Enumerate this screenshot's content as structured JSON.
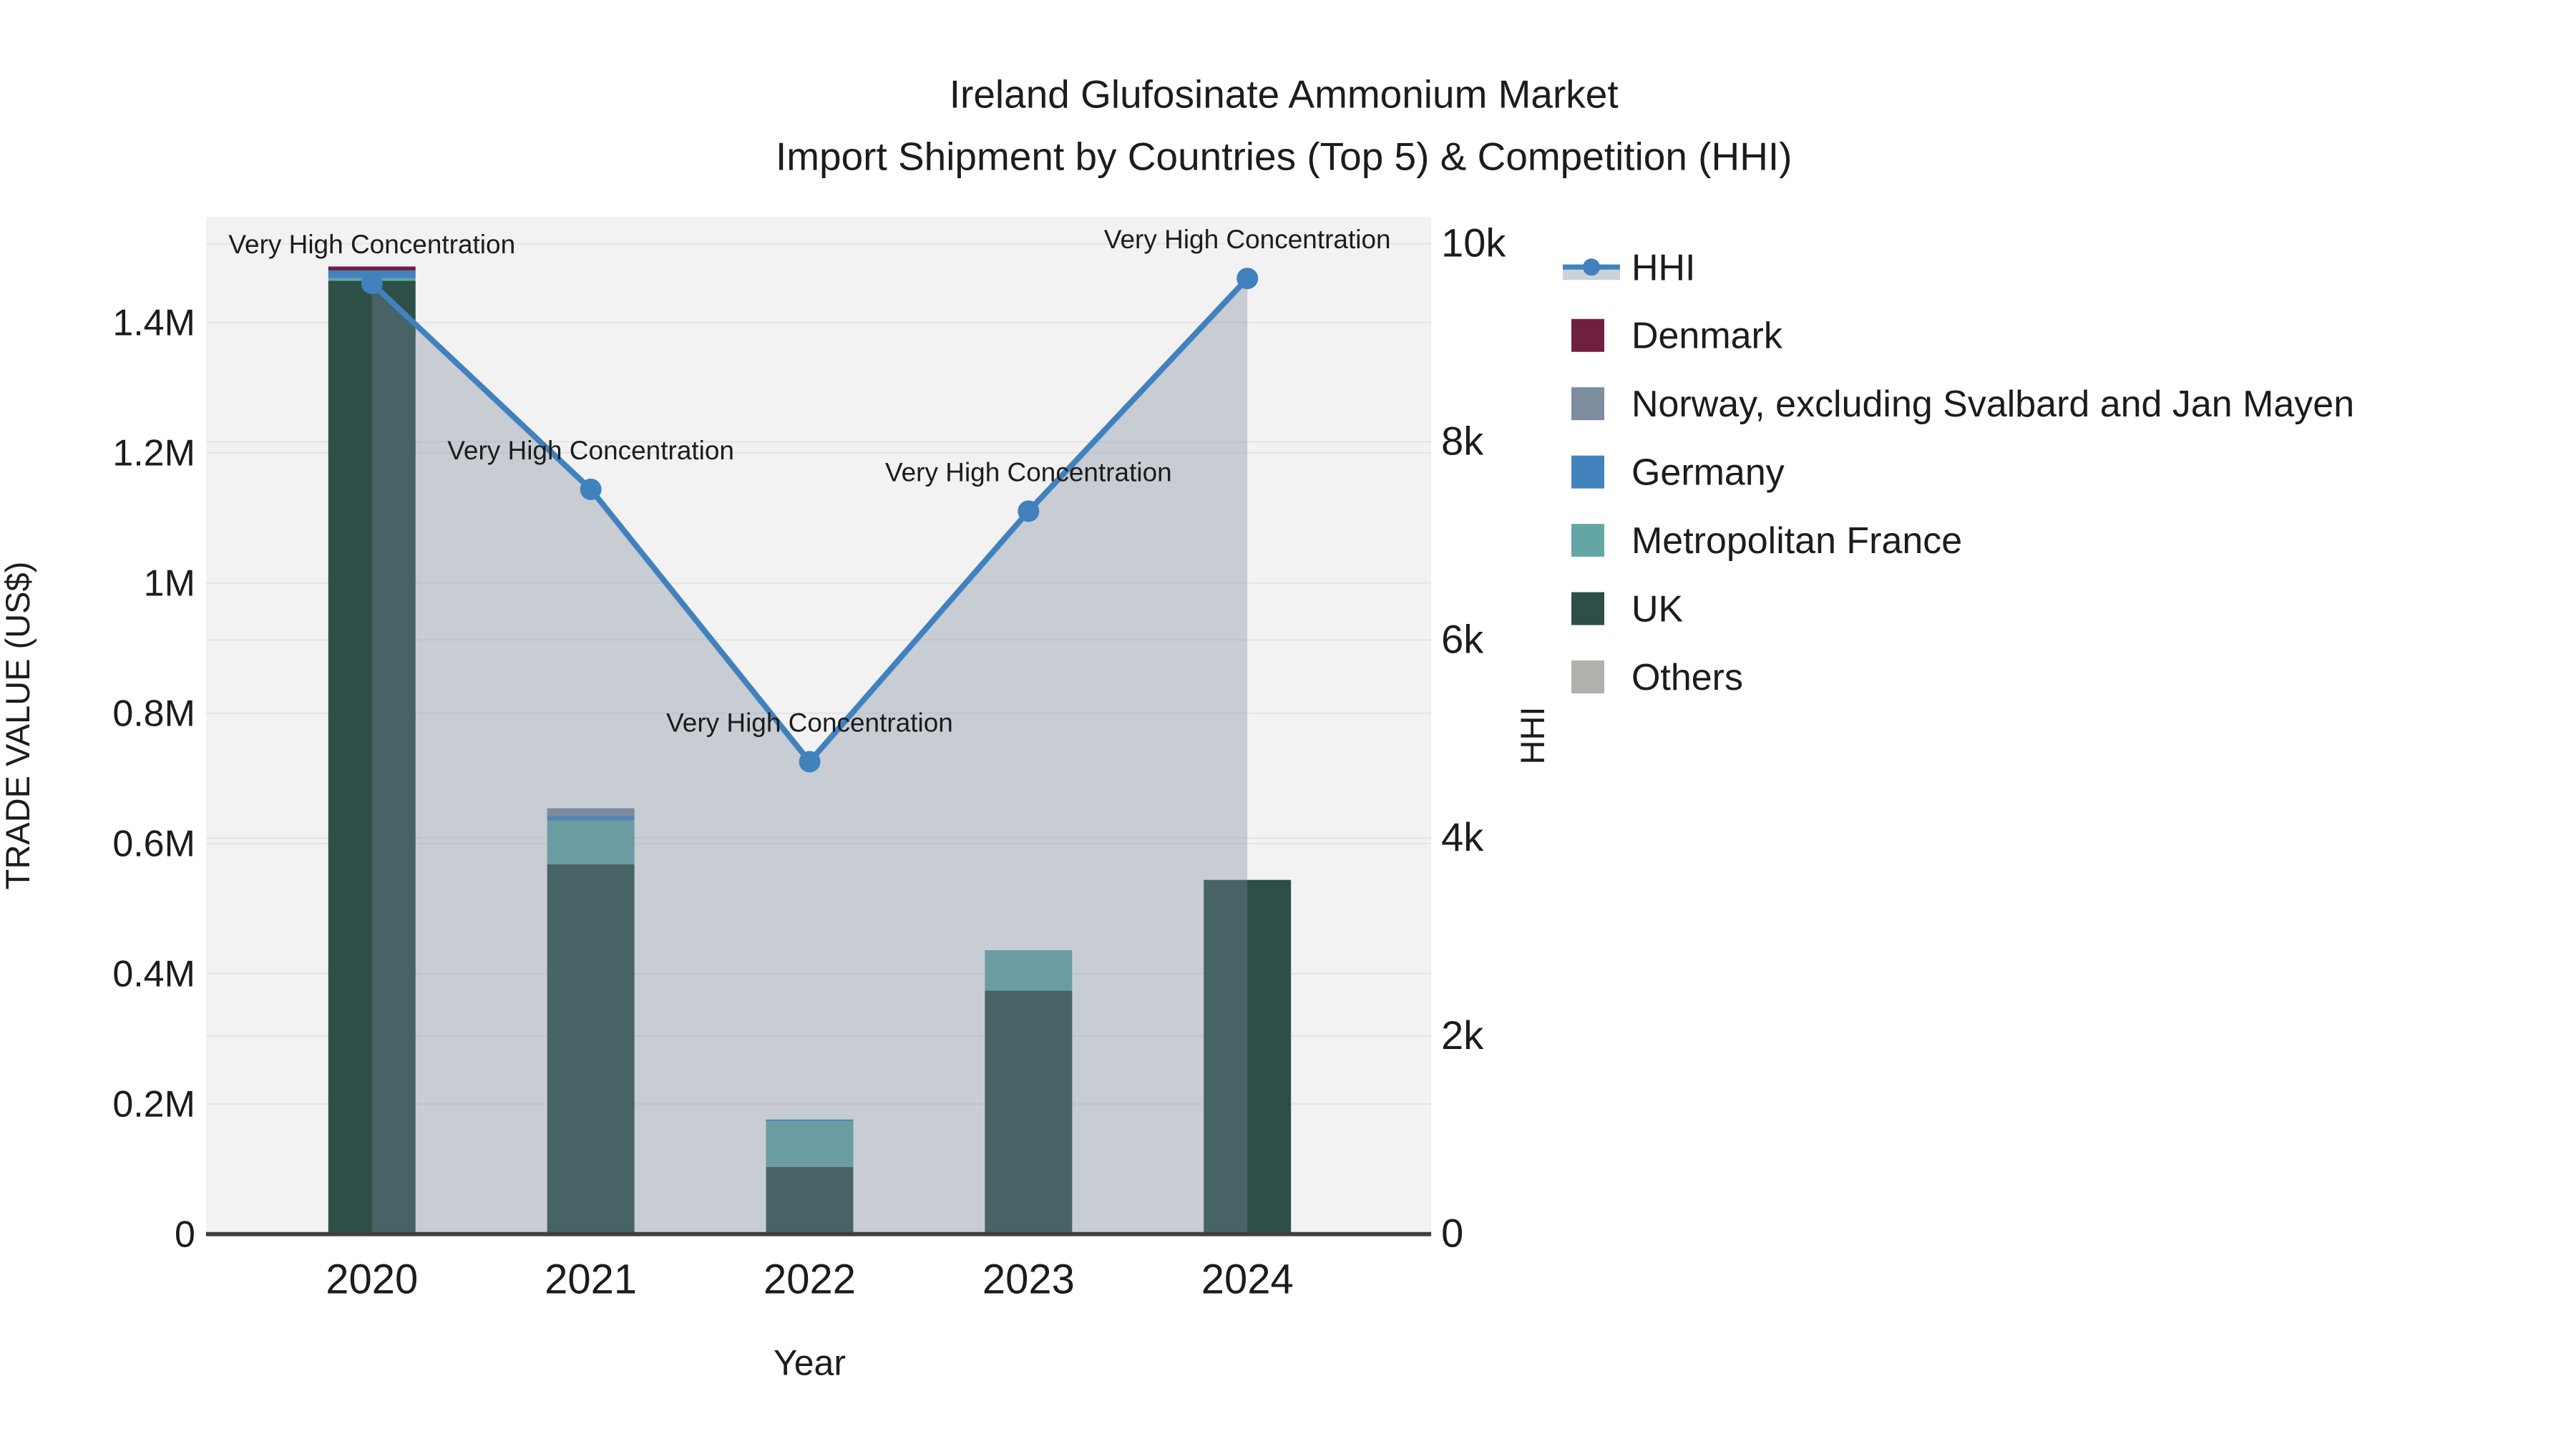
{
  "title": {
    "line1": "Ireland Glufosinate Ammonium Market",
    "line2": "Import Shipment by Countries (Top 5) & Competition (HHI)"
  },
  "axes": {
    "x_label": "Year",
    "y_left_label": "TRADE VALUE (US$)",
    "y_right_label": "HHI",
    "x_ticks": [
      "2020",
      "2021",
      "2022",
      "2023",
      "2024"
    ],
    "y_left_ticks": [
      {
        "value": 0,
        "label": "0"
      },
      {
        "value": 200000,
        "label": "0.2M"
      },
      {
        "value": 400000,
        "label": "0.4M"
      },
      {
        "value": 600000,
        "label": "0.6M"
      },
      {
        "value": 800000,
        "label": "0.8M"
      },
      {
        "value": 1000000,
        "label": "1M"
      },
      {
        "value": 1200000,
        "label": "1.2M"
      },
      {
        "value": 1400000,
        "label": "1.4M"
      }
    ],
    "y_right_ticks": [
      {
        "value": 0,
        "label": "0"
      },
      {
        "value": 2000,
        "label": "2k"
      },
      {
        "value": 4000,
        "label": "4k"
      },
      {
        "value": 6000,
        "label": "6k"
      },
      {
        "value": 8000,
        "label": "8k"
      },
      {
        "value": 10000,
        "label": "10k"
      }
    ]
  },
  "legend": {
    "items": [
      {
        "name": "HHI",
        "type": "line",
        "color": "#4181bd",
        "band": "#c9d2db"
      },
      {
        "name": "Denmark",
        "type": "box",
        "color": "#701f41"
      },
      {
        "name": "Norway, excluding Svalbard and Jan Mayen",
        "type": "box",
        "color": "#7d8da0"
      },
      {
        "name": "Germany",
        "type": "box",
        "color": "#4282bd"
      },
      {
        "name": "Metropolitan France",
        "type": "box",
        "color": "#63a6a3"
      },
      {
        "name": "UK",
        "type": "box",
        "color": "#2d4f48"
      },
      {
        "name": "Others",
        "type": "box",
        "color": "#b0b0ad"
      }
    ]
  },
  "chart_data": {
    "type": "combo: stacked bar (trade value, left axis) + line with area fill (HHI, right axis)",
    "x": [
      2020,
      2021,
      2022,
      2023,
      2024
    ],
    "bar_value_unit": "US$",
    "series": [
      {
        "name": "Denmark",
        "color": "#701f41",
        "values": [
          6000,
          0,
          0,
          0,
          0
        ]
      },
      {
        "name": "Norway, excluding Svalbard and Jan Mayen",
        "color": "#7d8da0",
        "values": [
          0,
          12000,
          0,
          0,
          0
        ]
      },
      {
        "name": "Germany",
        "color": "#4282bd",
        "values": [
          12000,
          7000,
          3000,
          0,
          0
        ]
      },
      {
        "name": "Metropolitan France",
        "color": "#63a6a3",
        "values": [
          4000,
          67000,
          70000,
          62000,
          0
        ]
      },
      {
        "name": "UK",
        "color": "#2d4f48",
        "values": [
          1464000,
          568000,
          103000,
          374000,
          544000
        ]
      },
      {
        "name": "Others",
        "color": "#b0b0ad",
        "values": [
          0,
          0,
          0,
          0,
          0
        ]
      }
    ],
    "bar_totals": [
      1486000,
      654000,
      176000,
      436000,
      544000
    ],
    "line": {
      "name": "HHI",
      "color": "#4181bd",
      "area_fill": "rgba(122,138,158,0.35)",
      "values": [
        9600,
        7520,
        4770,
        7300,
        9650
      ],
      "annotation": "Very High Concentration"
    },
    "ylim_left": [
      0,
      1562000
    ],
    "ylim_right": [
      0,
      10270
    ],
    "plot_background": "#f2f2f2",
    "grid_color": "#e4e4e4",
    "grid": true,
    "legend_position": "right"
  }
}
